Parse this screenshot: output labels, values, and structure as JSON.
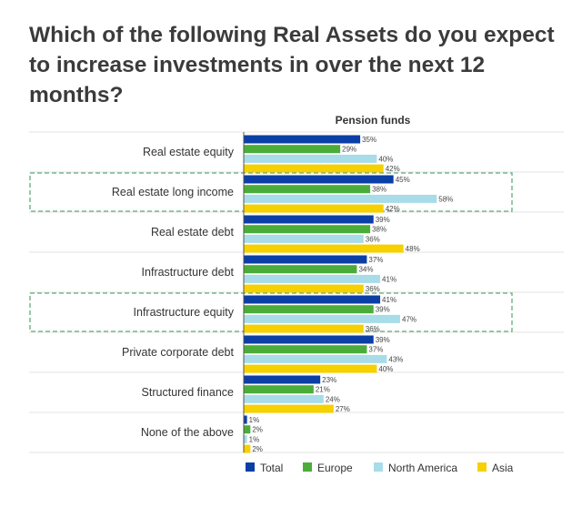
{
  "title": "Which of the following Real Assets do you expect to increase investments in over the next 12 months?",
  "chart_data": {
    "type": "bar",
    "orientation": "horizontal",
    "panel_title": "Pension funds",
    "categories": [
      "Real estate equity",
      "Real estate long income",
      "Real estate debt",
      "Infrastructure debt",
      "Infrastructure equity",
      "Private corporate debt",
      "Structured finance",
      "None of the above"
    ],
    "highlighted_categories": [
      "Real estate long income",
      "Infrastructure equity"
    ],
    "series": [
      {
        "name": "Total",
        "color": "#0b3fa6",
        "values": [
          35,
          45,
          39,
          37,
          41,
          39,
          23,
          1
        ]
      },
      {
        "name": "Europe",
        "color": "#4aad3a",
        "values": [
          29,
          38,
          38,
          34,
          39,
          37,
          21,
          2
        ]
      },
      {
        "name": "North America",
        "color": "#a8dce8",
        "values": [
          40,
          58,
          36,
          41,
          47,
          43,
          24,
          1
        ]
      },
      {
        "name": "Asia",
        "color": "#f7d000",
        "values": [
          42,
          42,
          48,
          36,
          36,
          40,
          27,
          2
        ]
      }
    ],
    "value_suffix": "%",
    "xlim": [
      0,
      80
    ],
    "grid": false,
    "legend_position": "bottom"
  }
}
